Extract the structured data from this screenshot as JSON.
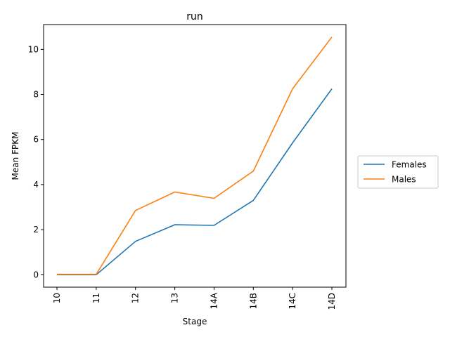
{
  "chart_data": {
    "type": "line",
    "title": "run",
    "xlabel": "Stage",
    "ylabel": "Mean FPKM",
    "categories": [
      "10",
      "11",
      "12",
      "13",
      "14A",
      "14B",
      "14C",
      "14D"
    ],
    "yticks": [
      0,
      2,
      4,
      6,
      8,
      10
    ],
    "ylim": [
      -0.55,
      11.1
    ],
    "grid": false,
    "legend_position": "right",
    "series": [
      {
        "name": "Females",
        "color": "#1f77b4",
        "values": [
          0.0,
          0.0,
          1.48,
          2.22,
          2.19,
          3.3,
          5.85,
          8.25
        ]
      },
      {
        "name": "Males",
        "color": "#ff7f0e",
        "values": [
          0.02,
          0.02,
          2.85,
          3.67,
          3.39,
          4.6,
          8.25,
          10.55
        ]
      }
    ]
  }
}
